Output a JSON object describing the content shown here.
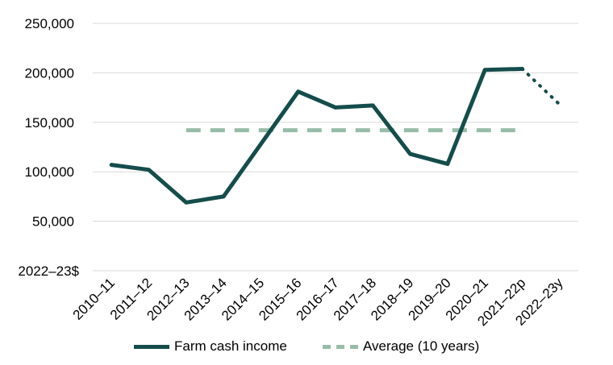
{
  "chart_data": {
    "type": "line",
    "categories": [
      "2010–11",
      "2011–12",
      "2012–13",
      "2013–14",
      "2014–15",
      "2015–16",
      "2016–17",
      "2017–18",
      "2018–19",
      "2019–20",
      "2020–21",
      "2021–22p",
      "2022–23y"
    ],
    "series": [
      {
        "name": "Farm cash income",
        "color": "#144d4b",
        "values": [
          107000,
          102000,
          69000,
          75000,
          128000,
          181000,
          165000,
          167000,
          118000,
          108000,
          203000,
          204000,
          null
        ],
        "projected_values": [
          null,
          null,
          null,
          null,
          null,
          null,
          null,
          null,
          null,
          null,
          null,
          204000,
          168000
        ]
      },
      {
        "name": "Average (10 years)",
        "color": "#97bda9",
        "values": [
          null,
          null,
          142000,
          142000,
          142000,
          142000,
          142000,
          142000,
          142000,
          142000,
          142000,
          142000,
          null
        ]
      }
    ],
    "yticks": [
      "250,000",
      "200,000",
      "150,000",
      "100,000",
      "50,000"
    ],
    "ytick_values": [
      250000,
      200000,
      150000,
      100000,
      50000
    ],
    "yunit_label": "2022–23$",
    "ylim": [
      0,
      250000
    ],
    "grid": "horizontal",
    "legend_position": "bottom"
  }
}
